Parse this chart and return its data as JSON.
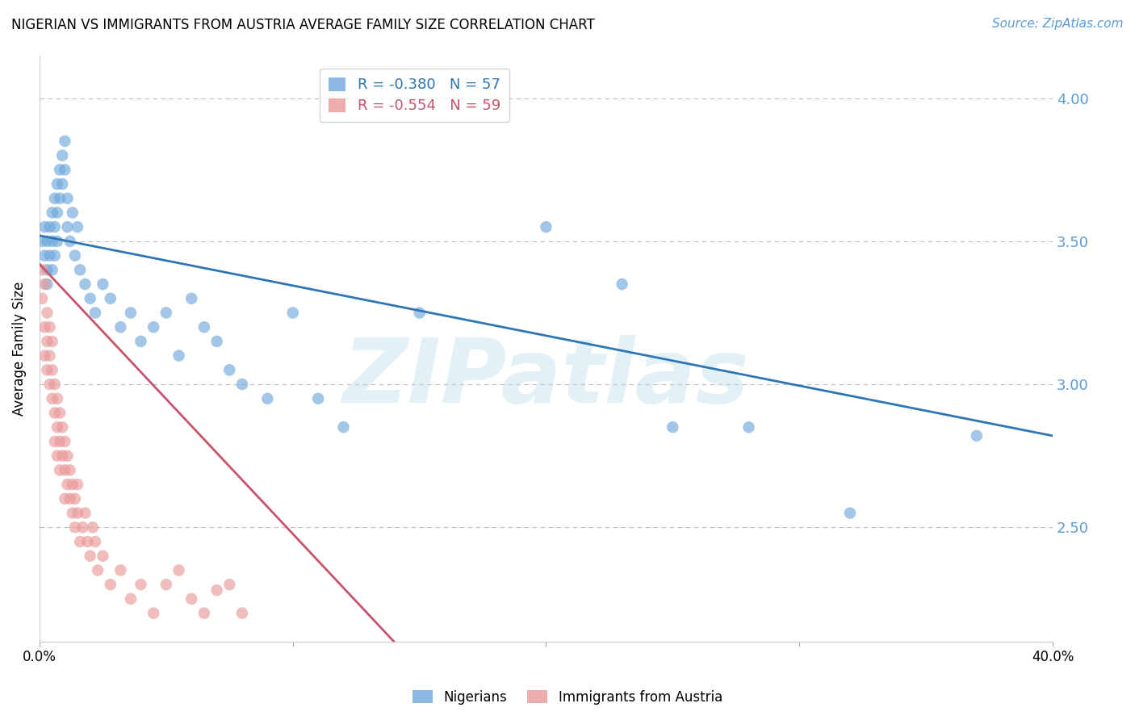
{
  "title": "NIGERIAN VS IMMIGRANTS FROM AUSTRIA AVERAGE FAMILY SIZE CORRELATION CHART",
  "source": "Source: ZipAtlas.com",
  "ylabel": "Average Family Size",
  "xlim": [
    0.0,
    0.4
  ],
  "ylim": [
    2.1,
    4.15
  ],
  "yticks": [
    2.5,
    3.0,
    3.5,
    4.0
  ],
  "xticks": [
    0.0,
    0.1,
    0.2,
    0.3,
    0.4
  ],
  "xticklabels": [
    "0.0%",
    "",
    "",
    "",
    "40.0%"
  ],
  "right_ytick_color": "#5B9BD5",
  "grid_color": "#BEBEBE",
  "watermark": "ZIPatlas",
  "watermark_color": "#ADD8E6",
  "blue_R": "-0.380",
  "blue_N": "57",
  "pink_R": "-0.554",
  "pink_N": "59",
  "blue_color": "#6FA8DC",
  "pink_color": "#EA9999",
  "blue_line_color": "#2E75B6",
  "pink_line_color": "#C9536A",
  "legend_label_blue": "Nigerians",
  "legend_label_pink": "Immigrants from Austria",
  "blue_scatter_x": [
    0.001,
    0.002,
    0.002,
    0.003,
    0.003,
    0.003,
    0.004,
    0.004,
    0.005,
    0.005,
    0.005,
    0.006,
    0.006,
    0.006,
    0.007,
    0.007,
    0.007,
    0.008,
    0.008,
    0.009,
    0.009,
    0.01,
    0.01,
    0.011,
    0.011,
    0.012,
    0.013,
    0.014,
    0.015,
    0.016,
    0.018,
    0.02,
    0.022,
    0.025,
    0.028,
    0.032,
    0.036,
    0.04,
    0.045,
    0.05,
    0.055,
    0.06,
    0.065,
    0.07,
    0.075,
    0.08,
    0.09,
    0.1,
    0.11,
    0.12,
    0.15,
    0.2,
    0.23,
    0.25,
    0.28,
    0.32,
    0.37
  ],
  "blue_scatter_y": [
    3.5,
    3.45,
    3.55,
    3.4,
    3.5,
    3.35,
    3.45,
    3.55,
    3.4,
    3.5,
    3.6,
    3.45,
    3.55,
    3.65,
    3.7,
    3.6,
    3.5,
    3.65,
    3.75,
    3.7,
    3.8,
    3.75,
    3.85,
    3.65,
    3.55,
    3.5,
    3.6,
    3.45,
    3.55,
    3.4,
    3.35,
    3.3,
    3.25,
    3.35,
    3.3,
    3.2,
    3.25,
    3.15,
    3.2,
    3.25,
    3.1,
    3.3,
    3.2,
    3.15,
    3.05,
    3.0,
    2.95,
    3.25,
    2.95,
    2.85,
    3.25,
    3.55,
    3.35,
    2.85,
    2.85,
    2.55,
    2.82
  ],
  "pink_scatter_x": [
    0.001,
    0.001,
    0.002,
    0.002,
    0.002,
    0.003,
    0.003,
    0.003,
    0.004,
    0.004,
    0.004,
    0.005,
    0.005,
    0.005,
    0.006,
    0.006,
    0.006,
    0.007,
    0.007,
    0.007,
    0.008,
    0.008,
    0.008,
    0.009,
    0.009,
    0.01,
    0.01,
    0.01,
    0.011,
    0.011,
    0.012,
    0.012,
    0.013,
    0.013,
    0.014,
    0.014,
    0.015,
    0.015,
    0.016,
    0.017,
    0.018,
    0.019,
    0.02,
    0.021,
    0.022,
    0.023,
    0.025,
    0.028,
    0.032,
    0.036,
    0.04,
    0.045,
    0.05,
    0.055,
    0.06,
    0.065,
    0.07,
    0.075,
    0.08
  ],
  "pink_scatter_y": [
    3.4,
    3.3,
    3.35,
    3.2,
    3.1,
    3.25,
    3.15,
    3.05,
    3.2,
    3.1,
    3.0,
    3.15,
    3.05,
    2.95,
    3.0,
    2.9,
    2.8,
    2.95,
    2.85,
    2.75,
    2.9,
    2.8,
    2.7,
    2.85,
    2.75,
    2.8,
    2.7,
    2.6,
    2.75,
    2.65,
    2.7,
    2.6,
    2.65,
    2.55,
    2.6,
    2.5,
    2.65,
    2.55,
    2.45,
    2.5,
    2.55,
    2.45,
    2.4,
    2.5,
    2.45,
    2.35,
    2.4,
    2.3,
    2.35,
    2.25,
    2.3,
    2.2,
    2.3,
    2.35,
    2.25,
    2.2,
    2.28,
    2.3,
    2.2
  ],
  "blue_line_x": [
    0.0,
    0.4
  ],
  "blue_line_y": [
    3.52,
    2.82
  ],
  "pink_line_x": [
    0.0,
    0.14
  ],
  "pink_line_y": [
    3.42,
    2.1
  ]
}
